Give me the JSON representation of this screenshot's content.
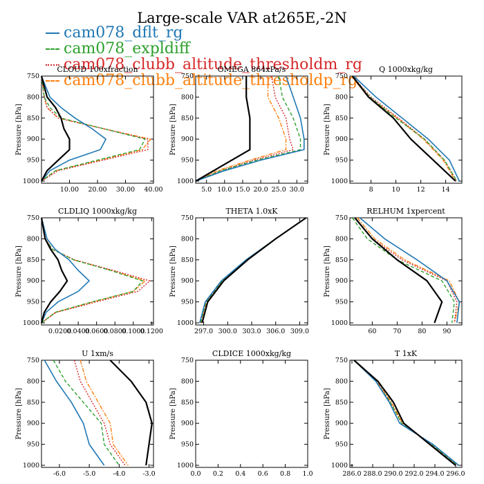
{
  "figure": {
    "title": "Large-scale VAR at265E,-2N"
  },
  "legend": [
    {
      "name": "cam078_dflt_rg",
      "color": "#1f77b4",
      "dash": "solid"
    },
    {
      "name": "cam078_expldiff",
      "color": "#2ca02c",
      "dash": "dashed"
    },
    {
      "name": "cam078_clubb_altitude_thresholdm_rg",
      "color": "#d62728",
      "dash": "dotted"
    },
    {
      "name": "cam078_clubb_altitude_thresholdp_rg",
      "color": "#ff7f0e",
      "dash": "dashdot"
    }
  ],
  "reference_color": "#000000",
  "chart_data": [
    {
      "type": "line",
      "title": "CLOUD 100xfraction",
      "ylabel": "Pressure [hPa]",
      "xlim": [
        0,
        40
      ],
      "ylim": [
        750,
        1005
      ],
      "xticks": [
        10,
        20,
        30,
        40
      ],
      "xticklabels": [
        "10.00",
        "20.00",
        "30.00",
        "40.00"
      ],
      "yticks": [
        750,
        800,
        850,
        900,
        950,
        1000
      ],
      "yticklabels": [
        "750",
        "800",
        "850",
        "900",
        "950",
        "1000"
      ],
      "y": [
        750,
        800,
        825,
        850,
        875,
        900,
        925,
        950,
        975,
        1000
      ],
      "series": [
        {
          "values": [
            0,
            2,
            5,
            7,
            8,
            10,
            10,
            6,
            2,
            0
          ]
        },
        {
          "values": [
            0,
            3,
            7,
            12,
            18,
            23,
            21,
            10,
            3,
            0
          ]
        },
        {
          "values": [
            0,
            1,
            3,
            7,
            22,
            37,
            35,
            20,
            5,
            0
          ]
        },
        {
          "values": [
            0,
            1,
            2,
            6,
            22,
            38,
            38,
            22,
            6,
            0
          ]
        },
        {
          "values": [
            0,
            1,
            2,
            6,
            22,
            39,
            36,
            21,
            5,
            0
          ]
        }
      ]
    },
    {
      "type": "line",
      "title": "OMEGA 864xPa/s",
      "ylabel": "Pressure [hPa]",
      "xlim": [
        2,
        33
      ],
      "ylim": [
        750,
        1005
      ],
      "xticks": [
        5,
        10,
        15,
        20,
        25,
        30
      ],
      "xticklabels": [
        "5.0",
        "10.0",
        "15.0",
        "20.0",
        "25.0",
        "30.0"
      ],
      "yticks": [
        750,
        800,
        850,
        900,
        950,
        1000
      ],
      "yticklabels": [
        "750",
        "800",
        "850",
        "900",
        "950",
        "1000"
      ],
      "y": [
        750,
        800,
        850,
        900,
        925,
        950,
        975,
        1000
      ],
      "series": [
        {
          "values": [
            16,
            16,
            17,
            17,
            17,
            12,
            7,
            2
          ]
        },
        {
          "values": [
            27,
            29,
            31,
            32,
            32,
            20,
            10,
            2
          ]
        },
        {
          "values": [
            25,
            26,
            29,
            31,
            31,
            19,
            9,
            2
          ]
        },
        {
          "values": [
            23,
            24,
            27,
            28,
            29,
            18,
            9,
            2
          ]
        },
        {
          "values": [
            22,
            22,
            25,
            27,
            27,
            17,
            8,
            2
          ]
        }
      ]
    },
    {
      "type": "line",
      "title": "Q 1000xkg/kg",
      "ylabel": "Pressure [hPa]",
      "xlim": [
        6.3,
        15.3
      ],
      "ylim": [
        750,
        1005
      ],
      "xticks": [
        8,
        10,
        12,
        14
      ],
      "xticklabels": [
        "8",
        "10",
        "12",
        "14"
      ],
      "yticks": [
        750,
        800,
        850,
        900,
        950,
        1000
      ],
      "yticklabels": [
        "750",
        "800",
        "850",
        "900",
        "950",
        "1000"
      ],
      "y": [
        750,
        800,
        850,
        900,
        950,
        1000
      ],
      "series": [
        {
          "values": [
            6.5,
            7.8,
            9.8,
            11.2,
            13.0,
            14.8
          ]
        },
        {
          "values": [
            6.6,
            8.4,
            10.5,
            12.6,
            14.3,
            15.1
          ]
        },
        {
          "values": [
            6.5,
            7.9,
            10.0,
            12.3,
            13.9,
            14.9
          ]
        },
        {
          "values": [
            6.5,
            8.0,
            10.2,
            12.3,
            13.9,
            14.9
          ]
        },
        {
          "values": [
            6.4,
            7.8,
            10.1,
            12.2,
            13.8,
            14.8
          ]
        }
      ]
    },
    {
      "type": "line",
      "title": "CLDLIQ 1000xkg/kg",
      "ylabel": "Pressure [hPa]",
      "xlim": [
        0,
        0.122
      ],
      "ylim": [
        750,
        1005
      ],
      "xticks": [
        0.02,
        0.04,
        0.06,
        0.08,
        0.1,
        0.12
      ],
      "xticklabels": [
        "0.0200",
        "0.0400",
        "0.0600",
        "0.0800",
        "0.1000",
        "0.1200"
      ],
      "yticks": [
        750,
        800,
        850,
        900,
        950,
        1000
      ],
      "yticklabels": [
        "750",
        "800",
        "850",
        "900",
        "950",
        "1000"
      ],
      "y": [
        750,
        800,
        825,
        850,
        875,
        900,
        925,
        950,
        975,
        1000
      ],
      "series": [
        {
          "values": [
            0,
            0.004,
            0.01,
            0.018,
            0.022,
            0.028,
            0.02,
            0.01,
            0.003,
            0
          ]
        },
        {
          "values": [
            0,
            0.006,
            0.015,
            0.03,
            0.04,
            0.052,
            0.04,
            0.018,
            0.005,
            0
          ]
        },
        {
          "values": [
            0,
            0.004,
            0.012,
            0.035,
            0.075,
            0.11,
            0.1,
            0.055,
            0.015,
            0
          ]
        },
        {
          "values": [
            0,
            0.004,
            0.012,
            0.036,
            0.078,
            0.118,
            0.105,
            0.06,
            0.016,
            0
          ]
        },
        {
          "values": [
            0,
            0.004,
            0.012,
            0.035,
            0.076,
            0.113,
            0.1,
            0.056,
            0.015,
            0
          ]
        }
      ]
    },
    {
      "type": "line",
      "title": "THETA 1.0xK",
      "ylabel": "Pressure [hPa]",
      "xlim": [
        296,
        310
      ],
      "ylim": [
        750,
        1005
      ],
      "xticks": [
        297,
        300,
        303,
        306,
        309
      ],
      "xticklabels": [
        "297.0",
        "300.0",
        "303.0",
        "306.0",
        "309.0"
      ],
      "yticks": [
        750,
        800,
        850,
        900,
        950,
        1000
      ],
      "yticklabels": [
        "750",
        "800",
        "850",
        "900",
        "950",
        "1000"
      ],
      "y": [
        750,
        800,
        850,
        900,
        950,
        1000
      ],
      "series": [
        {
          "values": [
            309.8,
            306.0,
            302.5,
            299.5,
            297.5,
            296.8
          ]
        },
        {
          "values": [
            309.8,
            306.0,
            302.3,
            299.2,
            297.2,
            296.5
          ]
        },
        {
          "values": [
            309.8,
            306.0,
            302.3,
            299.3,
            297.3,
            296.6
          ]
        },
        {
          "values": [
            309.8,
            306.0,
            302.3,
            299.3,
            297.3,
            296.6
          ]
        },
        {
          "values": [
            309.8,
            306.0,
            302.4,
            299.4,
            297.4,
            296.7
          ]
        }
      ]
    },
    {
      "type": "line",
      "title": "RELHUM 1xpercent",
      "ylabel": "Pressure [hPa]",
      "xlim": [
        51,
        96
      ],
      "ylim": [
        750,
        1005
      ],
      "xticks": [
        60,
        70,
        80,
        90
      ],
      "xticklabels": [
        "60",
        "70",
        "80",
        "90"
      ],
      "yticks": [
        750,
        800,
        850,
        900,
        950,
        1000
      ],
      "yticklabels": [
        "750",
        "800",
        "850",
        "900",
        "950",
        "1000"
      ],
      "y": [
        750,
        800,
        850,
        900,
        950,
        1000
      ],
      "series": [
        {
          "values": [
            53,
            60,
            70,
            82,
            88,
            85
          ]
        },
        {
          "values": [
            55,
            65,
            78,
            90,
            95,
            94
          ]
        },
        {
          "values": [
            52,
            58,
            70,
            88,
            93,
            92
          ]
        },
        {
          "values": [
            53,
            60,
            72,
            90,
            94,
            93
          ]
        },
        {
          "values": [
            54,
            61,
            73,
            91,
            95,
            93
          ]
        }
      ]
    },
    {
      "type": "line",
      "title": "U 1xm/s",
      "ylabel": "Pressure [hPa]",
      "xlim": [
        -6.6,
        -2.85
      ],
      "ylim": [
        750,
        1005
      ],
      "xticks": [
        -6,
        -5,
        -4,
        -3
      ],
      "xticklabels": [
        "-6.0",
        "-5.0",
        "-4.0",
        "-3.0"
      ],
      "yticks": [
        750,
        800,
        850,
        900,
        950,
        1000
      ],
      "yticklabels": [
        "750",
        "800",
        "850",
        "900",
        "950",
        "1000"
      ],
      "y": [
        750,
        800,
        850,
        900,
        950,
        1000
      ],
      "series": [
        {
          "values": [
            -4.3,
            -3.6,
            -3.1,
            -2.9,
            -3.0,
            -3.1
          ]
        },
        {
          "values": [
            -6.5,
            -6.1,
            -5.6,
            -5.2,
            -5.0,
            -4.5
          ]
        },
        {
          "values": [
            -6.2,
            -5.8,
            -5.2,
            -4.6,
            -4.5,
            -4.0
          ]
        },
        {
          "values": [
            -5.5,
            -5.3,
            -4.9,
            -4.5,
            -4.3,
            -3.8
          ]
        },
        {
          "values": [
            -5.3,
            -5.1,
            -4.7,
            -4.3,
            -4.2,
            -3.7
          ]
        }
      ]
    },
    {
      "type": "line",
      "title": "CLDICE 1000xkg/kg",
      "ylabel": "Pressure [hPa]",
      "xlim": [
        0,
        1
      ],
      "ylim": [
        750,
        1005
      ],
      "xticks": [
        0,
        0.2,
        0.4,
        0.6,
        0.8,
        1.0
      ],
      "xticklabels": [
        "0.0",
        "0.2",
        "0.4",
        "0.6",
        "0.8",
        "1.0"
      ],
      "yticks": [
        750,
        800,
        850,
        900,
        950,
        1000
      ],
      "yticklabels": [
        "750",
        "800",
        "850",
        "900",
        "950",
        "1000"
      ],
      "y": [],
      "series": []
    },
    {
      "type": "line",
      "title": "T 1xK",
      "ylabel": "Pressure [hPa]",
      "xlim": [
        285.8,
        296.6
      ],
      "ylim": [
        750,
        1005
      ],
      "xticks": [
        286,
        288,
        290,
        292,
        294,
        296
      ],
      "xticklabels": [
        "286.0",
        "288.0",
        "290.0",
        "292.0",
        "294.0",
        "296.0"
      ],
      "yticks": [
        750,
        800,
        850,
        900,
        950,
        1000
      ],
      "yticklabels": [
        "750",
        "800",
        "850",
        "900",
        "950",
        "1000"
      ],
      "y": [
        750,
        800,
        850,
        900,
        950,
        1000
      ],
      "series": [
        {
          "values": [
            286.2,
            288.5,
            290.0,
            291.0,
            293.5,
            296.0
          ]
        },
        {
          "values": [
            286.2,
            288.3,
            289.6,
            290.6,
            293.8,
            296.3
          ]
        },
        {
          "values": [
            286.2,
            288.3,
            289.7,
            290.8,
            293.7,
            296.2
          ]
        },
        {
          "values": [
            286.2,
            288.3,
            289.7,
            290.8,
            293.7,
            296.2
          ]
        },
        {
          "values": [
            286.2,
            288.4,
            289.8,
            290.9,
            293.6,
            296.1
          ]
        }
      ]
    }
  ]
}
